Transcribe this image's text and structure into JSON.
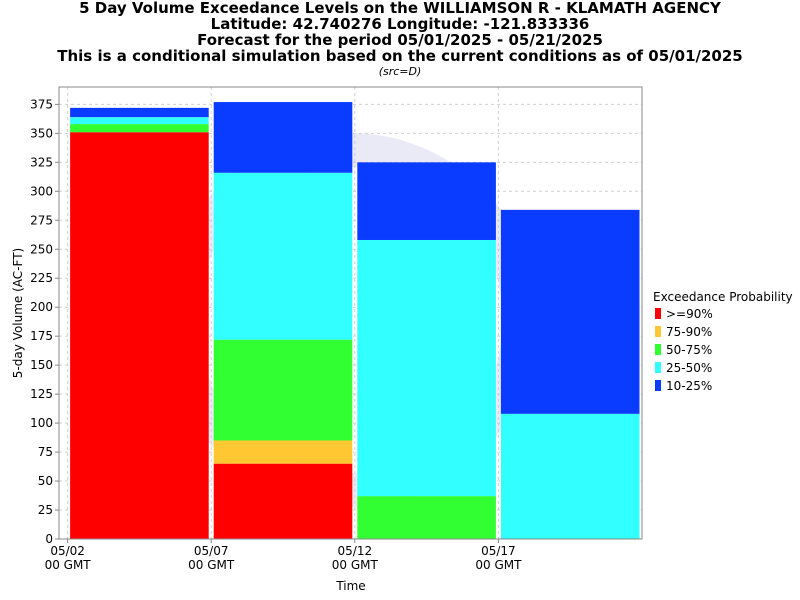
{
  "header": {
    "lines": [
      "5 Day Volume Exceedance Levels on the WILLIAMSON R - KLAMATH AGENCY",
      "Latitude: 42.740276 Longitude: -121.833336",
      "Forecast for the period 05/01/2025 - 05/21/2025",
      "This is a conditional simulation based on the current conditions as of 05/01/2025"
    ],
    "source": "(src=D)"
  },
  "chart_data": {
    "type": "bar",
    "stacked": true,
    "title": "5 Day Volume Exceedance Levels on the WILLIAMSON R - KLAMATH AGENCY",
    "xlabel": "Time",
    "ylabel": "5-day Volume (AC-FT)",
    "ylim": [
      0,
      390
    ],
    "yticks": [
      0,
      25,
      50,
      75,
      100,
      125,
      150,
      175,
      200,
      225,
      250,
      275,
      300,
      325,
      350,
      375
    ],
    "xticks": [
      {
        "line1": "05/02",
        "line2": "00 GMT",
        "day": 2
      },
      {
        "line1": "05/07",
        "line2": "00 GMT",
        "day": 7
      },
      {
        "line1": "05/12",
        "line2": "00 GMT",
        "day": 12
      },
      {
        "line1": "05/17",
        "line2": "00 GMT",
        "day": 17
      }
    ],
    "x_range_days": [
      1.7,
      22.0
    ],
    "grid": true,
    "legend_position": "right",
    "legend_title": "Exceedance Probability",
    "bands": [
      {
        "name": ">=90%",
        "color": "#ff0000"
      },
      {
        "name": "75-90%",
        "color": "#ffc832"
      },
      {
        "name": "50-75%",
        "color": "#32ff32"
      },
      {
        "name": "25-50%",
        "color": "#32ffff"
      },
      {
        "name": "10-25%",
        "color": "#0a3cff"
      }
    ],
    "bars": [
      {
        "start_day": 2,
        "end_day": 7,
        "levels": [
          351,
          351,
          358,
          364,
          372
        ]
      },
      {
        "start_day": 7,
        "end_day": 12,
        "levels": [
          65,
          85,
          172,
          316,
          377
        ]
      },
      {
        "start_day": 12,
        "end_day": 17,
        "levels": [
          0,
          0,
          37,
          258,
          325
        ]
      },
      {
        "start_day": 17,
        "end_day": 22,
        "levels": [
          0,
          0,
          0,
          108,
          284
        ]
      }
    ]
  }
}
